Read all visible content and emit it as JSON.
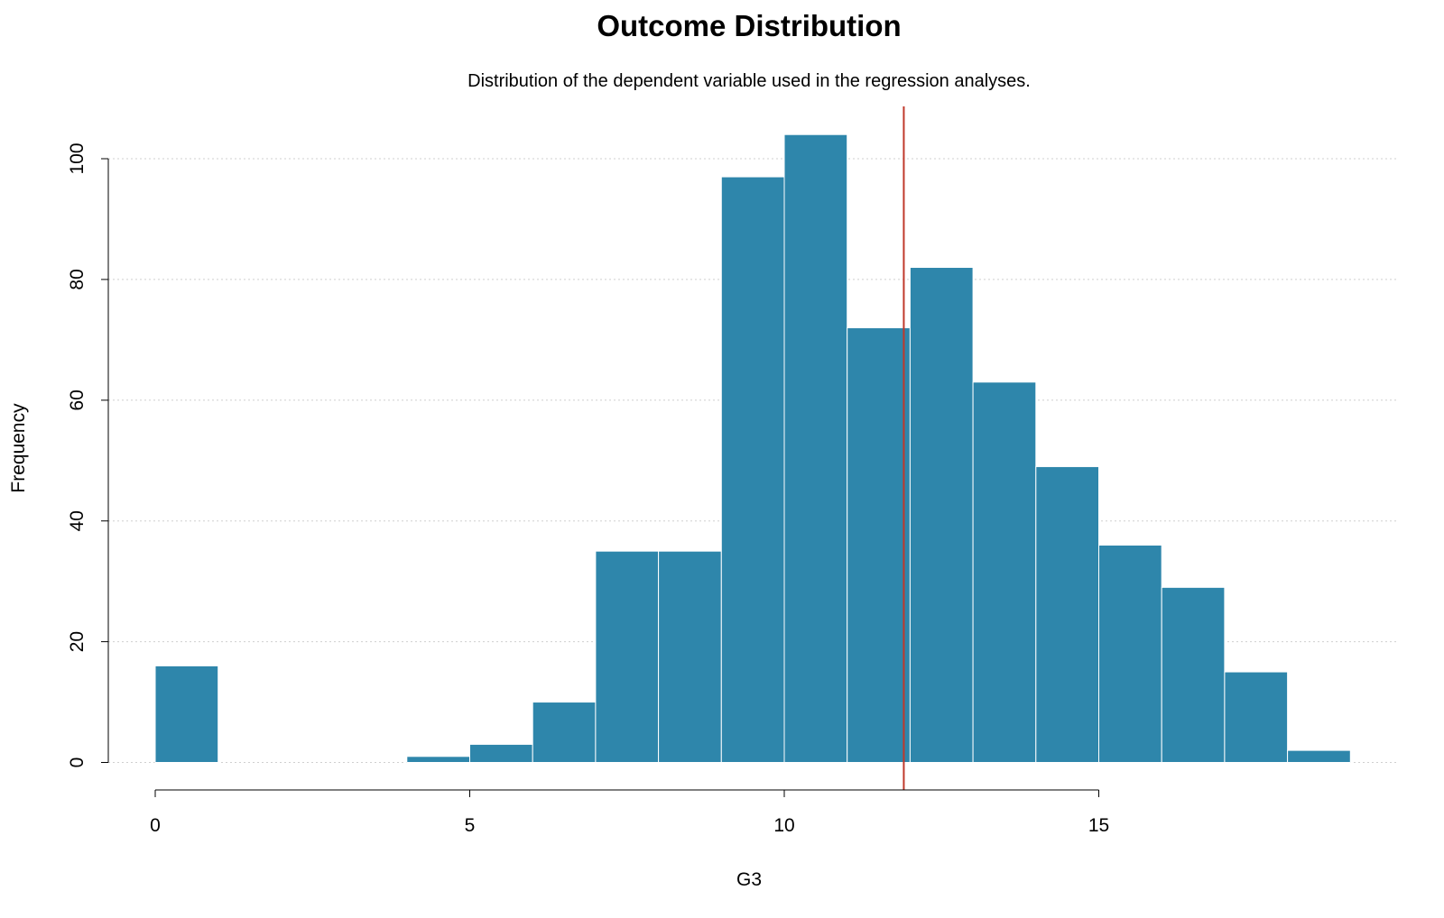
{
  "chart_data": {
    "type": "bar",
    "title": "Outcome Distribution",
    "subtitle": "Distribution of the dependent variable used in the regression analyses.",
    "xlabel": "G3",
    "ylabel": "Frequency",
    "bins": [
      {
        "x0": 0,
        "x1": 1,
        "count": 16
      },
      {
        "x0": 1,
        "x1": 2,
        "count": 0
      },
      {
        "x0": 2,
        "x1": 3,
        "count": 0
      },
      {
        "x0": 3,
        "x1": 4,
        "count": 0
      },
      {
        "x0": 4,
        "x1": 5,
        "count": 1
      },
      {
        "x0": 5,
        "x1": 6,
        "count": 3
      },
      {
        "x0": 6,
        "x1": 7,
        "count": 10
      },
      {
        "x0": 7,
        "x1": 8,
        "count": 35
      },
      {
        "x0": 8,
        "x1": 9,
        "count": 35
      },
      {
        "x0": 9,
        "x1": 10,
        "count": 97
      },
      {
        "x0": 10,
        "x1": 11,
        "count": 104
      },
      {
        "x0": 11,
        "x1": 12,
        "count": 72
      },
      {
        "x0": 12,
        "x1": 13,
        "count": 82
      },
      {
        "x0": 13,
        "x1": 14,
        "count": 63
      },
      {
        "x0": 14,
        "x1": 15,
        "count": 49
      },
      {
        "x0": 15,
        "x1": 16,
        "count": 36
      },
      {
        "x0": 16,
        "x1": 17,
        "count": 29
      },
      {
        "x0": 17,
        "x1": 18,
        "count": 15
      },
      {
        "x0": 18,
        "x1": 19,
        "count": 2
      }
    ],
    "reference_line": {
      "x": 11.9,
      "color": "#c0392b"
    },
    "xticks": [
      0,
      5,
      10,
      15
    ],
    "yticks": [
      0,
      20,
      40,
      60,
      80,
      100
    ],
    "xlim": [
      0,
      19
    ],
    "ylim": [
      0,
      108
    ],
    "grid": true,
    "bar_color": "#2e86ab"
  }
}
